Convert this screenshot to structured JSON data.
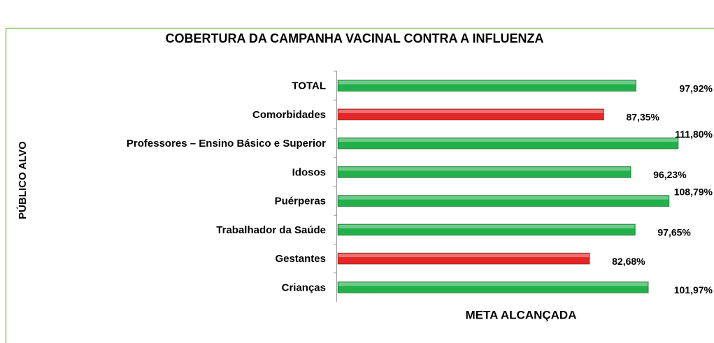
{
  "chart_data": {
    "type": "barh",
    "title": "COBERTURA DA CAMPANHA VACINAL CONTRA A INFLUENZA",
    "ylabel": "PÚBLICO ALVO",
    "xlabel": "META ALCANÇADA",
    "categories": [
      "TOTAL",
      "Comorbidades",
      "Professores – Ensino Básico e Superior",
      "Idosos",
      "Puérperas",
      "Trabalhador da Saúde",
      "Gestantes",
      "Crianças"
    ],
    "values": [
      97.92,
      87.35,
      111.8,
      96.23,
      108.79,
      97.65,
      82.68,
      101.97
    ],
    "value_labels": [
      "97,92%",
      "87,35%",
      "111,80%",
      "96,23%",
      "108,79%",
      "97,65%",
      "82,68%",
      "101,97%"
    ],
    "colors": [
      "#22b04a",
      "#e32626",
      "#22b04a",
      "#22b04a",
      "#22b04a",
      "#22b04a",
      "#e32626",
      "#22b04a"
    ],
    "xlim": [
      0,
      120
    ]
  }
}
